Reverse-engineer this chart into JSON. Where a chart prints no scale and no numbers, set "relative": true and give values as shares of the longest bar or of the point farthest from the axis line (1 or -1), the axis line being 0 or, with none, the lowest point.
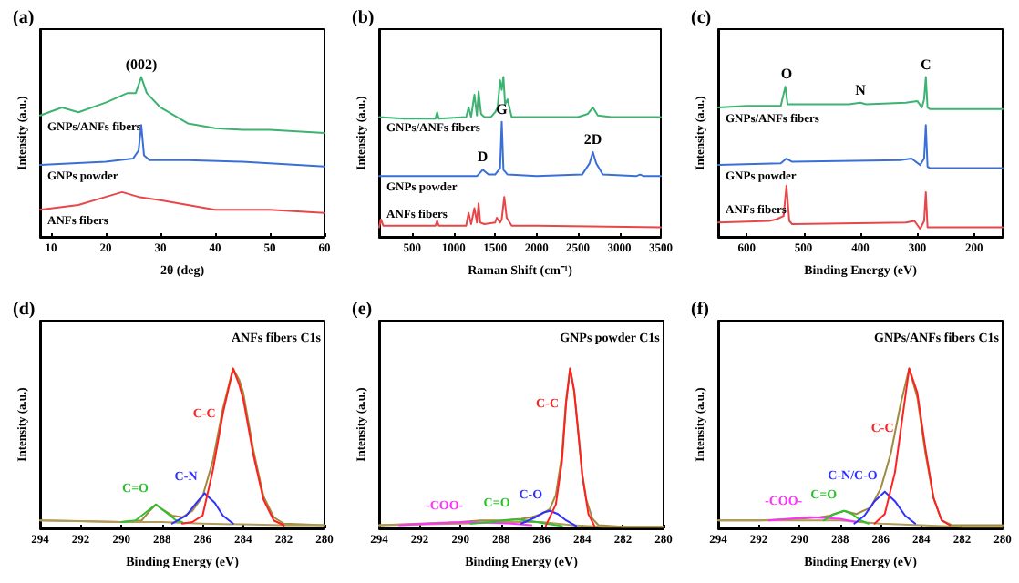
{
  "chart_data": [
    {
      "type": "line",
      "title": "(a)",
      "xlabel": "2θ (deg)",
      "ylabel": "Intensity (a.u.)",
      "relative": true,
      "xlim": [
        8,
        60
      ],
      "xticks": [
        10,
        20,
        30,
        40,
        50,
        60
      ],
      "annotations": [
        {
          "text": "(002)",
          "x": 26.5,
          "y": 1.0
        }
      ],
      "series": [
        {
          "name": "GNPs/ANFs fibers",
          "color": "#3cb371",
          "x": [
            8,
            12,
            15,
            20,
            24,
            25.5,
            26.5,
            27.5,
            30,
            35,
            40,
            45,
            50,
            55,
            60
          ],
          "values": [
            0.76,
            0.81,
            0.78,
            0.84,
            0.9,
            0.9,
            1.0,
            0.9,
            0.81,
            0.71,
            0.68,
            0.67,
            0.67,
            0.66,
            0.65
          ]
        },
        {
          "name": "GNPs powder",
          "color": "#3a6fd8",
          "x": [
            8,
            20,
            25,
            26,
            26.5,
            27,
            28,
            35,
            45,
            60
          ],
          "values": [
            0.45,
            0.47,
            0.49,
            0.54,
            0.7,
            0.51,
            0.48,
            0.48,
            0.47,
            0.44
          ]
        },
        {
          "name": "ANFs fibers",
          "color": "#e8474a",
          "x": [
            8,
            15,
            20,
            23,
            26,
            30,
            40,
            50,
            60
          ],
          "values": [
            0.17,
            0.2,
            0.25,
            0.28,
            0.25,
            0.23,
            0.17,
            0.17,
            0.15
          ]
        }
      ]
    },
    {
      "type": "line",
      "title": "(b)",
      "xlabel": "Raman Shift (cm⁻¹)",
      "ylabel": "Intensity (a.u.)",
      "relative": true,
      "xlim": [
        100,
        3500
      ],
      "xticks": [
        500,
        1000,
        1500,
        2000,
        2500,
        3000,
        3500
      ],
      "annotations": [
        {
          "text": "D",
          "x": 1350,
          "y": 0.42
        },
        {
          "text": "G",
          "x": 1580,
          "y": 0.72
        },
        {
          "text": "2D",
          "x": 2680,
          "y": 0.53
        }
      ],
      "series": [
        {
          "name": "GNPs/ANFs fibers",
          "color": "#3cb371",
          "x": [
            100,
            400,
            780,
            800,
            820,
            1150,
            1180,
            1210,
            1250,
            1280,
            1300,
            1330,
            1370,
            1450,
            1500,
            1530,
            1560,
            1580,
            1600,
            1620,
            1650,
            1700,
            2000,
            2500,
            2620,
            2680,
            2740,
            2900,
            3500
          ],
          "values": [
            0.75,
            0.74,
            0.74,
            0.78,
            0.74,
            0.75,
            0.81,
            0.75,
            0.89,
            0.76,
            0.91,
            0.77,
            0.75,
            0.75,
            0.78,
            0.81,
            0.98,
            0.92,
            1.0,
            0.83,
            0.86,
            0.75,
            0.75,
            0.75,
            0.77,
            0.81,
            0.76,
            0.75,
            0.75
          ]
        },
        {
          "name": "GNPs powder",
          "color": "#3a6fd8",
          "x": [
            100,
            1000,
            1280,
            1350,
            1420,
            1500,
            1560,
            1580,
            1600,
            1650,
            2000,
            2550,
            2640,
            2680,
            2720,
            2800,
            3200,
            3250,
            3300,
            3500
          ],
          "values": [
            0.38,
            0.38,
            0.38,
            0.42,
            0.39,
            0.39,
            0.43,
            0.72,
            0.42,
            0.39,
            0.38,
            0.39,
            0.46,
            0.53,
            0.46,
            0.39,
            0.38,
            0.39,
            0.38,
            0.38
          ]
        },
        {
          "name": "ANFs fibers",
          "color": "#e8474a",
          "x": [
            100,
            120,
            150,
            780,
            800,
            820,
            1150,
            1180,
            1210,
            1250,
            1280,
            1300,
            1320,
            1370,
            1500,
            1520,
            1560,
            1580,
            1610,
            1640,
            1700,
            2000,
            3500
          ],
          "values": [
            0.06,
            0.11,
            0.07,
            0.07,
            0.1,
            0.07,
            0.07,
            0.15,
            0.08,
            0.18,
            0.09,
            0.21,
            0.09,
            0.08,
            0.09,
            0.12,
            0.09,
            0.11,
            0.25,
            0.12,
            0.07,
            0.07,
            0.06
          ]
        }
      ]
    },
    {
      "type": "line",
      "title": "(c)",
      "xlabel": "Binding Energy (eV)",
      "ylabel": "Intensity (a.u.)",
      "relative": true,
      "xlim": [
        650,
        150
      ],
      "xticks": [
        600,
        500,
        400,
        300,
        200
      ],
      "annotations": [
        {
          "text": "O",
          "x": 530,
          "y": 0.94
        },
        {
          "text": "N",
          "x": 400,
          "y": 0.84
        },
        {
          "text": "C",
          "x": 285,
          "y": 1.0
        }
      ],
      "series": [
        {
          "name": "GNPs/ANFs fibers",
          "color": "#3cb371",
          "x": [
            650,
            600,
            540,
            532,
            528,
            520,
            420,
            400,
            390,
            320,
            300,
            292,
            288,
            285,
            282,
            278,
            250,
            150
          ],
          "values": [
            0.81,
            0.82,
            0.82,
            0.94,
            0.83,
            0.83,
            0.83,
            0.84,
            0.83,
            0.84,
            0.85,
            0.81,
            0.86,
            1.0,
            0.81,
            0.8,
            0.8,
            0.8
          ]
        },
        {
          "name": "GNPs powder",
          "color": "#3a6fd8",
          "x": [
            650,
            540,
            530,
            520,
            330,
            310,
            295,
            288,
            285,
            282,
            278,
            150
          ],
          "values": [
            0.45,
            0.46,
            0.49,
            0.47,
            0.48,
            0.49,
            0.45,
            0.49,
            0.7,
            0.44,
            0.43,
            0.43
          ]
        },
        {
          "name": "ANFs fibers",
          "color": "#e8474a",
          "x": [
            650,
            560,
            548,
            535,
            530,
            525,
            520,
            320,
            305,
            295,
            288,
            285,
            282,
            278,
            150
          ],
          "values": [
            0.09,
            0.1,
            0.11,
            0.13,
            0.32,
            0.1,
            0.08,
            0.09,
            0.1,
            0.05,
            0.1,
            0.28,
            0.06,
            0.06,
            0.06
          ]
        }
      ]
    },
    {
      "type": "line",
      "title": "(d)",
      "xlabel": "Binding Energy (eV)",
      "ylabel": "Intensity (a.u.)",
      "relative": true,
      "xlim": [
        294,
        280
      ],
      "xticks": [
        294,
        292,
        290,
        288,
        286,
        284,
        282,
        280
      ],
      "annotations": [
        "ANFs fibers C1s"
      ],
      "series": [
        {
          "color": "#a08a40",
          "x": [
            294,
            292,
            290,
            289,
            288.6,
            288.3,
            288,
            287.5,
            287,
            286.5,
            286,
            285.5,
            285,
            284.5,
            284.2,
            284,
            283.5,
            283,
            282.5,
            282,
            280
          ],
          "values": [
            0.05,
            0.045,
            0.04,
            0.05,
            0.11,
            0.15,
            0.12,
            0.08,
            0.07,
            0.11,
            0.2,
            0.42,
            0.75,
            1.0,
            0.93,
            0.85,
            0.49,
            0.2,
            0.07,
            0.03,
            0.02
          ]
        },
        {
          "color": "#b09c58",
          "x": [
            294,
            290,
            288,
            286,
            284,
            282,
            280
          ],
          "values": [
            0.05,
            0.04,
            0.04,
            0.03,
            0.025,
            0.02,
            0.02
          ]
        },
        {
          "name": "C=O",
          "color": "#2ec02e",
          "x": [
            290,
            289.3,
            288.8,
            288.3,
            287.8,
            287.3,
            287
          ],
          "values": [
            0.04,
            0.05,
            0.1,
            0.15,
            0.1,
            0.05,
            0.04
          ]
        },
        {
          "name": "C-N",
          "color": "#3030ff",
          "x": [
            287.5,
            286.8,
            286.3,
            285.9,
            285.4,
            285,
            284.5
          ],
          "values": [
            0.03,
            0.08,
            0.16,
            0.22,
            0.16,
            0.08,
            0.03
          ]
        },
        {
          "name": "C-C",
          "color": "#ff2020",
          "x": [
            287,
            286.5,
            286,
            285.5,
            285,
            284.5,
            284.2,
            284,
            283.5,
            283,
            282.5,
            282
          ],
          "values": [
            0.03,
            0.04,
            0.08,
            0.36,
            0.72,
            1.0,
            0.9,
            0.81,
            0.46,
            0.18,
            0.05,
            0.02
          ]
        }
      ]
    },
    {
      "type": "line",
      "title": "(e)",
      "xlabel": "Binding Energy (eV)",
      "ylabel": "Intensity (a.u.)",
      "relative": true,
      "xlim": [
        294,
        280
      ],
      "xticks": [
        294,
        292,
        290,
        288,
        286,
        284,
        282,
        280
      ],
      "annotations": [
        "GNPs powder C1s"
      ],
      "series": [
        {
          "color": "#a08a40",
          "x": [
            294,
            292,
            290,
            289,
            288,
            287,
            286.5,
            286,
            285.6,
            285.3,
            285,
            284.8,
            284.6,
            284.4,
            284.2,
            284,
            283.8,
            283.5,
            283.2,
            282,
            280
          ],
          "values": [
            0.02,
            0.03,
            0.04,
            0.05,
            0.05,
            0.06,
            0.07,
            0.09,
            0.12,
            0.21,
            0.46,
            0.8,
            1.0,
            0.86,
            0.61,
            0.34,
            0.18,
            0.06,
            0.02,
            0.01,
            0.01
          ]
        },
        {
          "color": "#b09c58",
          "x": [
            294,
            290,
            288,
            286,
            284.5,
            283,
            280
          ],
          "values": [
            0.02,
            0.03,
            0.04,
            0.04,
            0.02,
            0.01,
            0.01
          ]
        },
        {
          "name": "-COO-",
          "color": "#ff30ff",
          "x": [
            293,
            291.5,
            290.5,
            289.5,
            288.5,
            287.5,
            286.5
          ],
          "values": [
            0.02,
            0.03,
            0.035,
            0.04,
            0.035,
            0.03,
            0.02
          ]
        },
        {
          "name": "C=O",
          "color": "#2ec02e",
          "x": [
            289.5,
            288.5,
            287.8,
            287.2,
            286.5,
            285.8,
            285
          ],
          "values": [
            0.03,
            0.04,
            0.05,
            0.055,
            0.045,
            0.03,
            0.015
          ]
        },
        {
          "name": "C-O",
          "color": "#3030ff",
          "x": [
            287,
            286.3,
            285.9,
            285.6,
            285.2,
            284.8,
            284.3
          ],
          "values": [
            0.03,
            0.07,
            0.1,
            0.11,
            0.09,
            0.05,
            0.015
          ]
        },
        {
          "name": "C-C",
          "color": "#ff2020",
          "x": [
            285.8,
            285.3,
            285,
            284.8,
            284.6,
            284.4,
            284.2,
            284,
            283.7,
            283.4
          ],
          "values": [
            0.015,
            0.15,
            0.42,
            0.78,
            1.0,
            0.86,
            0.6,
            0.33,
            0.09,
            0.015
          ]
        }
      ]
    },
    {
      "type": "line",
      "title": "(f)",
      "xlabel": "Binding Energy (eV)",
      "ylabel": "Intensity (a.u.)",
      "relative": true,
      "xlim": [
        294,
        280
      ],
      "xticks": [
        294,
        292,
        290,
        288,
        286,
        284,
        282,
        280
      ],
      "annotations": [
        "GNPs/ANFs fibers C1s"
      ],
      "series": [
        {
          "color": "#a08a40",
          "x": [
            294,
            292,
            290,
            289,
            288.5,
            287.8,
            287.2,
            286.5,
            286,
            285.5,
            285,
            284.6,
            284.2,
            283.8,
            283.4,
            283,
            282.5,
            280
          ],
          "values": [
            0.05,
            0.05,
            0.06,
            0.07,
            0.08,
            0.11,
            0.09,
            0.13,
            0.25,
            0.47,
            0.79,
            1.0,
            0.82,
            0.47,
            0.19,
            0.05,
            0.02,
            0.02
          ]
        },
        {
          "color": "#b09c58",
          "x": [
            294,
            290,
            288,
            286,
            284,
            282,
            280
          ],
          "values": [
            0.05,
            0.05,
            0.05,
            0.03,
            0.02,
            0.01,
            0.01
          ]
        },
        {
          "name": "-COO-",
          "color": "#ff30ff",
          "x": [
            291.5,
            290.5,
            289.5,
            288.8,
            288,
            287.2
          ],
          "values": [
            0.05,
            0.06,
            0.07,
            0.065,
            0.06,
            0.04
          ]
        },
        {
          "name": "C=O",
          "color": "#2ec02e",
          "x": [
            288.8,
            288.3,
            287.8,
            287.4,
            287,
            286.6
          ],
          "values": [
            0.05,
            0.09,
            0.11,
            0.09,
            0.05,
            0.03
          ]
        },
        {
          "name": "C-N/C-O",
          "color": "#3030ff",
          "x": [
            287.3,
            286.8,
            286.3,
            285.8,
            285.3,
            284.8,
            284.3
          ],
          "values": [
            0.03,
            0.08,
            0.17,
            0.23,
            0.17,
            0.08,
            0.03
          ]
        },
        {
          "name": "C-C",
          "color": "#ff2020",
          "x": [
            286.3,
            285.8,
            285.3,
            285,
            284.6,
            284.2,
            283.8,
            283.4,
            283,
            282.6
          ],
          "values": [
            0.03,
            0.09,
            0.35,
            0.63,
            1.0,
            0.85,
            0.5,
            0.19,
            0.05,
            0.02
          ]
        }
      ]
    }
  ]
}
